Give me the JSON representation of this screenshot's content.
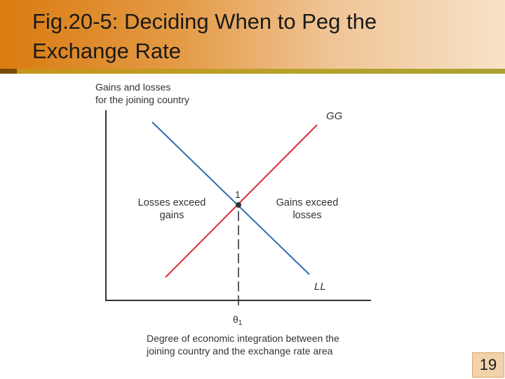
{
  "slide": {
    "title_line1": "Fig.20-5: Deciding When to Peg the",
    "title_line2": "Exchange Rate",
    "page_number": "19"
  },
  "diagram": {
    "y_axis_label_line1": "Gains and losses",
    "y_axis_label_line2": "for the joining country",
    "x_axis_label_line1": "Degree of economic integration between the",
    "x_axis_label_line2": "joining country and the exchange rate area",
    "gg_label": "GG",
    "ll_label": "LL",
    "point_label": "1",
    "theta_label": "θ",
    "theta_subscript": "1",
    "left_region_line1": "Losses exceed",
    "left_region_line2": "gains",
    "right_region_line1": "Gains exceed",
    "right_region_line2": "losses",
    "colors": {
      "gg_line": "#d62e3a",
      "ll_line": "#2f6db0",
      "axis": "#333333",
      "point": "#333333"
    }
  }
}
